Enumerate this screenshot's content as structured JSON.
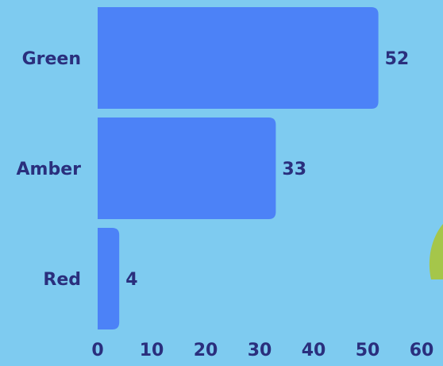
{
  "colors": {
    "background": "#7ecbf0",
    "bar": "#4c82f7",
    "text": "#2a2f7d",
    "decor": "#a5c64a"
  },
  "chart_data": {
    "type": "bar",
    "orientation": "horizontal",
    "categories": [
      "Green",
      "Amber",
      "Red"
    ],
    "values": [
      52,
      33,
      4
    ],
    "title": "",
    "xlabel": "",
    "ylabel": "",
    "xlim": [
      0,
      60
    ],
    "xticks": [
      "0",
      "10",
      "20",
      "30",
      "40",
      "50",
      "60"
    ],
    "grid": false,
    "legend": "none",
    "data_labels": true
  }
}
